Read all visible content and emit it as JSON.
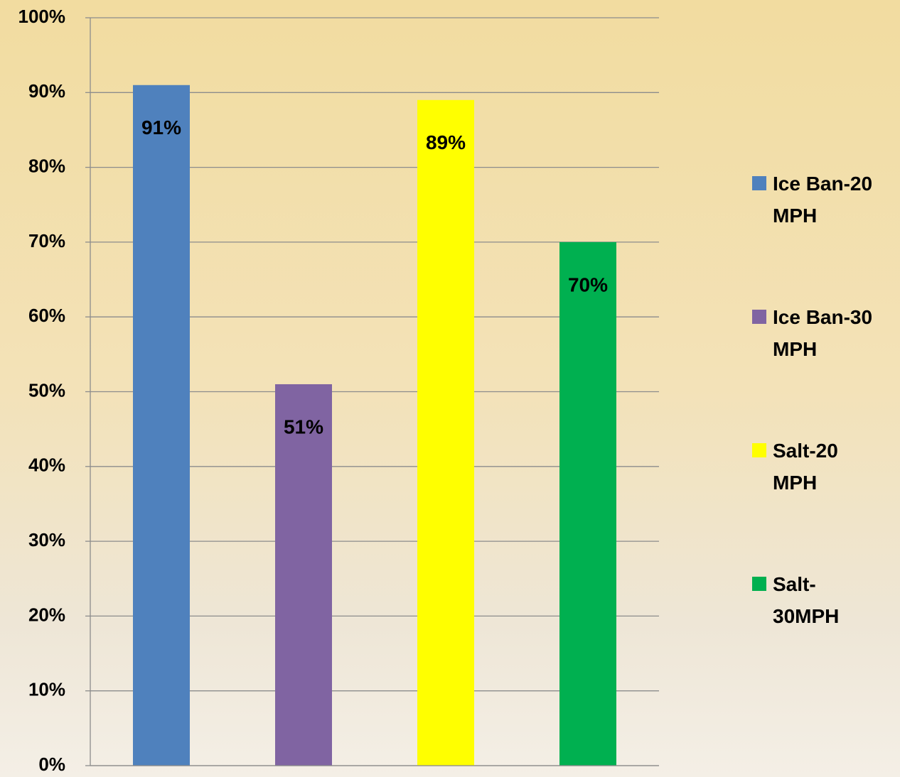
{
  "chart_data": {
    "type": "bar",
    "categories": [
      null
    ],
    "series": [
      {
        "name": "Ice Ban-20 MPH",
        "color": "#4f81bd",
        "values": [
          91
        ],
        "value_labels": [
          "91%"
        ]
      },
      {
        "name": "Ice Ban-30 MPH",
        "color": "#8064a2",
        "values": [
          51
        ],
        "value_labels": [
          "51%"
        ]
      },
      {
        "name": "Salt-20 MPH",
        "color": "#ffff00",
        "values": [
          89
        ],
        "value_labels": [
          "89%"
        ]
      },
      {
        "name": "Salt-30MPH",
        "color": "#00b050",
        "values": [
          70
        ],
        "value_labels": [
          "70%"
        ]
      }
    ],
    "ylim": [
      0,
      100
    ],
    "yticks": [
      {
        "value": 0,
        "label": "0%"
      },
      {
        "value": 10,
        "label": "10%"
      },
      {
        "value": 20,
        "label": "20%"
      },
      {
        "value": 30,
        "label": "30%"
      },
      {
        "value": 40,
        "label": "40%"
      },
      {
        "value": 50,
        "label": "50%"
      },
      {
        "value": 60,
        "label": "60%"
      },
      {
        "value": 70,
        "label": "70%"
      },
      {
        "value": 80,
        "label": "80%"
      },
      {
        "value": 90,
        "label": "90%"
      },
      {
        "value": 100,
        "label": "100%"
      }
    ],
    "grid": true,
    "legend": "right"
  }
}
